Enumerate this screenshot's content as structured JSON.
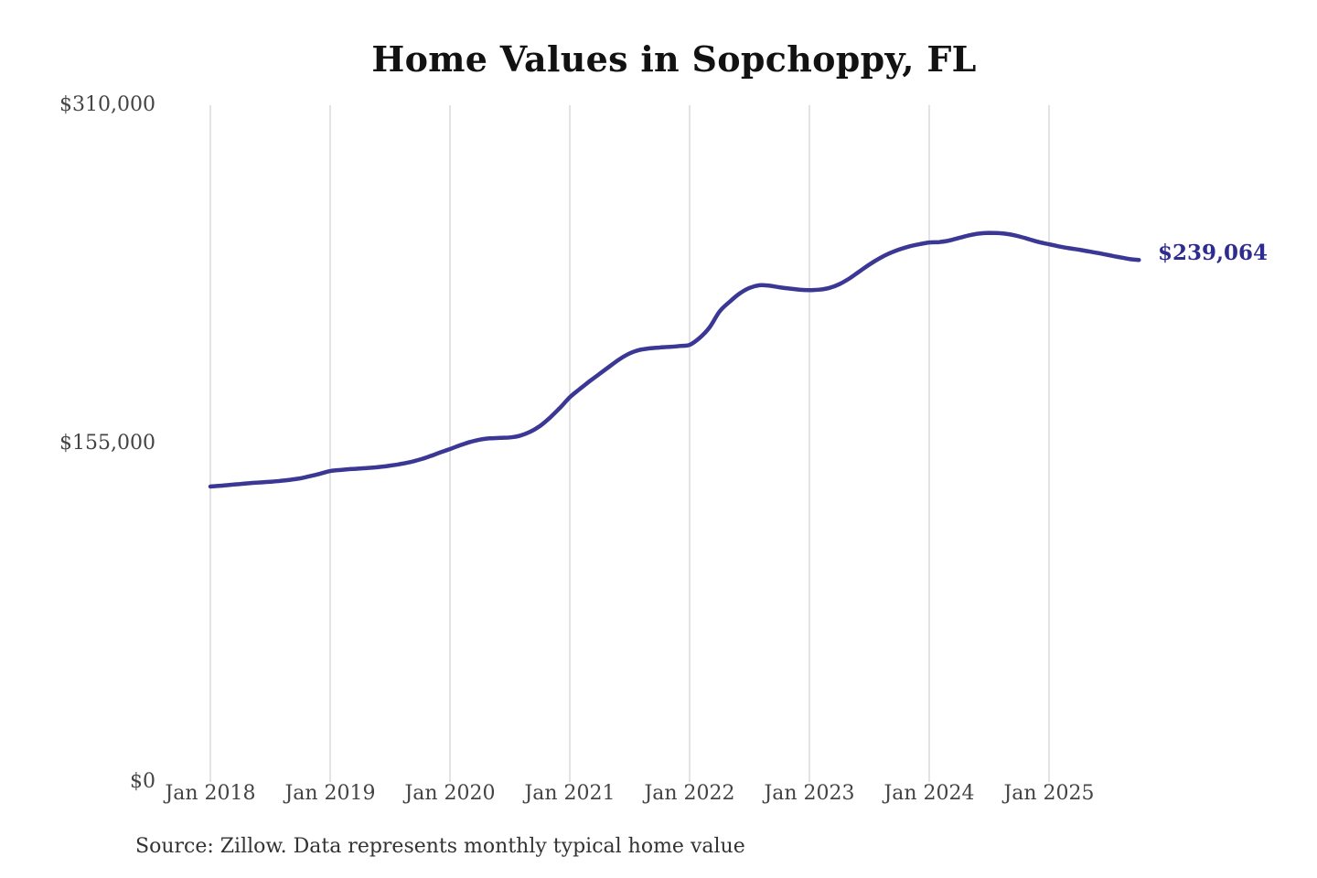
{
  "chart_data": {
    "type": "line",
    "title": "Home Values in Sopchoppy, FL",
    "xlabel": "",
    "ylabel": "",
    "ylim": [
      0,
      310000
    ],
    "y_tick_values": [
      0,
      155000,
      310000
    ],
    "y_tick_labels": [
      "$0",
      "$155,000",
      "$310,000"
    ],
    "x_tick_labels": [
      "Jan 2018",
      "Jan 2019",
      "Jan 2020",
      "Jan 2021",
      "Jan 2022",
      "Jan 2023",
      "Jan 2024",
      "Jan 2025"
    ],
    "grid": "vertical-only",
    "legend": "none",
    "line_color": "#3a3795",
    "grid_color": "#c7c7c7",
    "axis_text_color": "#444444",
    "end_label": "$239,064",
    "end_label_color": "#2f2c90",
    "series": [
      {
        "name": "Monthly typical home value",
        "start": "Jan 2018",
        "end": "Oct 2025",
        "frequency": "monthly",
        "values": [
          135300,
          135700,
          136100,
          136500,
          136900,
          137200,
          137500,
          137900,
          138400,
          139100,
          140100,
          141200,
          142400,
          142900,
          143300,
          143600,
          143900,
          144300,
          144900,
          145600,
          146500,
          147700,
          149200,
          150900,
          152500,
          154200,
          155700,
          156800,
          157400,
          157600,
          157800,
          158600,
          160300,
          163000,
          166800,
          171300,
          176200,
          180000,
          183600,
          187000,
          190400,
          193700,
          196300,
          197900,
          198600,
          199000,
          199300,
          199700,
          200200,
          203400,
          208200,
          215500,
          219900,
          223700,
          226300,
          227500,
          227300,
          226600,
          226000,
          225500,
          225300,
          225500,
          226300,
          228000,
          230600,
          233800,
          237000,
          239800,
          242100,
          243900,
          245300,
          246300,
          247100,
          247300,
          248000,
          249200,
          250400,
          251200,
          251500,
          251400,
          250900,
          249900,
          248600,
          247300,
          246300,
          245300,
          244500,
          243800,
          243000,
          242200,
          241300,
          240400,
          239600,
          239064
        ]
      }
    ]
  },
  "source_note": "Source: Zillow. Data represents monthly typical home value"
}
